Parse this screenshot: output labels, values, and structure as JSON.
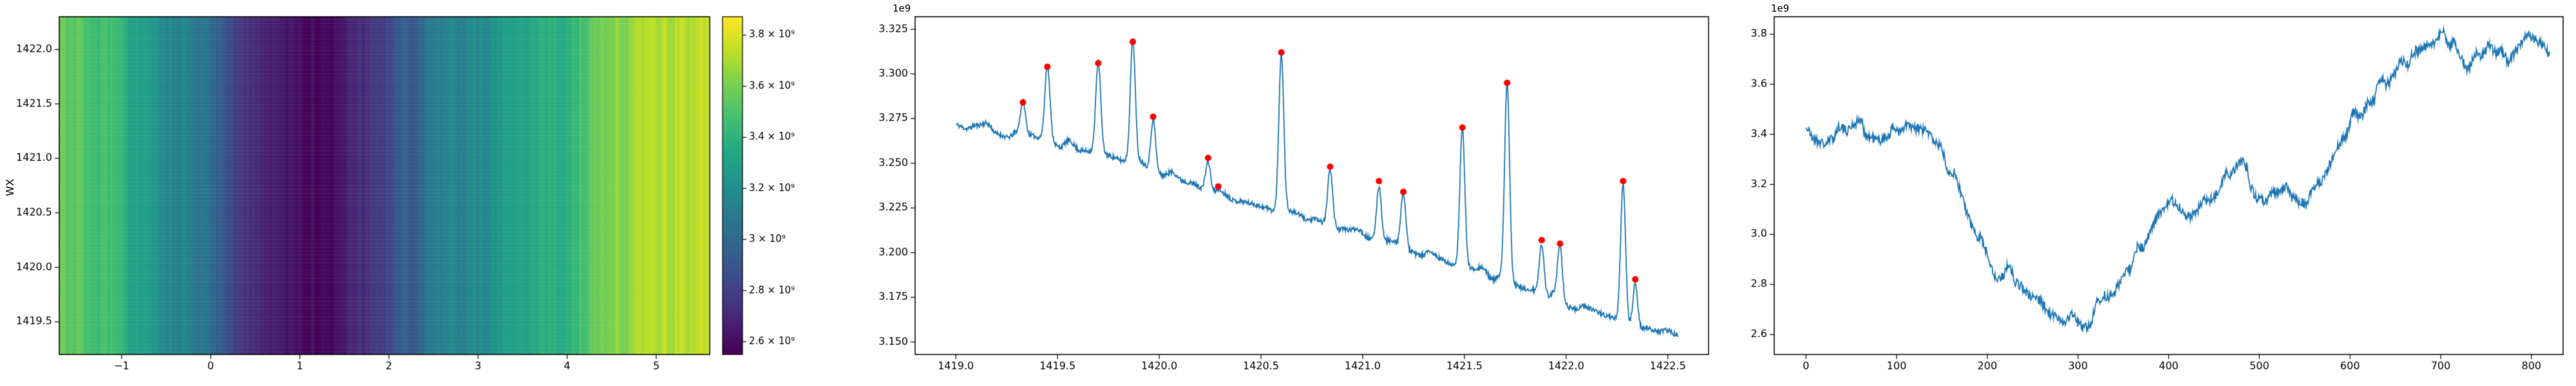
{
  "figure": {
    "background": "#ffffff"
  },
  "style": {
    "line_color": "#1f77b4",
    "marker_color": "#ff0000",
    "axis_color": "#000000",
    "colormap": [
      [
        0.0,
        "#440154"
      ],
      [
        0.1,
        "#482475"
      ],
      [
        0.2,
        "#414487"
      ],
      [
        0.3,
        "#355f8d"
      ],
      [
        0.4,
        "#2a788e"
      ],
      [
        0.5,
        "#21918c"
      ],
      [
        0.6,
        "#22a884"
      ],
      [
        0.7,
        "#44bf70"
      ],
      [
        0.8,
        "#7ad151"
      ],
      [
        0.9,
        "#bddf26"
      ],
      [
        1.0,
        "#fde725"
      ]
    ]
  },
  "chart_data": [
    {
      "id": "intensity-heatmap",
      "type": "heatmap",
      "title": "",
      "xlabel": "",
      "ylabel": "WX",
      "xlim": [
        -1.7,
        5.6
      ],
      "ylim": [
        1419.2,
        1422.3
      ],
      "xticks": [
        {
          "v": -1,
          "label": "−1"
        },
        {
          "v": 0,
          "label": "0"
        },
        {
          "v": 1,
          "label": "1"
        },
        {
          "v": 2,
          "label": "2"
        },
        {
          "v": 3,
          "label": "3"
        },
        {
          "v": 4,
          "label": "4"
        },
        {
          "v": 5,
          "label": "5"
        }
      ],
      "yticks": [
        {
          "v": 1422.0,
          "label": "1422.0"
        },
        {
          "v": 1421.5,
          "label": "1421.5"
        },
        {
          "v": 1421.0,
          "label": "1421.0"
        },
        {
          "v": 1420.5,
          "label": "1420.5"
        },
        {
          "v": 1420.0,
          "label": "1420.0"
        },
        {
          "v": 1419.5,
          "label": "1419.5"
        }
      ],
      "value_range_1e9": [
        2.55,
        3.872
      ],
      "profile_x": [
        -1.7,
        -1.3,
        -1.0,
        -0.6,
        -0.3,
        0.0,
        0.3,
        0.6,
        0.9,
        1.2,
        1.5,
        1.8,
        2.1,
        2.5,
        3.0,
        3.5,
        4.0,
        4.3,
        4.6,
        5.0,
        5.3,
        5.6
      ],
      "profile_v": [
        3.56,
        3.47,
        3.38,
        3.24,
        3.1,
        2.98,
        2.82,
        2.68,
        2.62,
        2.6,
        2.64,
        2.74,
        2.92,
        3.06,
        3.2,
        3.3,
        3.42,
        3.52,
        3.62,
        3.7,
        3.76,
        3.82
      ],
      "colorbar": {
        "ticks": [
          {
            "v": 3.8,
            "label": "3.8 × 10⁹"
          },
          {
            "v": 3.6,
            "label": "3.6 × 10⁹"
          },
          {
            "v": 3.4,
            "label": "3.4 × 10⁹"
          },
          {
            "v": 3.2,
            "label": "3.2 × 10⁹"
          },
          {
            "v": 3.0,
            "label": "3 × 10⁹"
          },
          {
            "v": 2.8,
            "label": "2.8 × 10⁹"
          },
          {
            "v": 2.6,
            "label": "2.6 × 10⁹"
          }
        ]
      }
    },
    {
      "id": "spectrum-with-peaks",
      "type": "line",
      "title": "",
      "xlabel": "",
      "ylabel": "",
      "offset_label": "1e9",
      "xlim": [
        1418.8,
        1422.7
      ],
      "ylim": [
        3.143,
        3.332
      ],
      "xticks": [
        {
          "v": 1419.0,
          "label": "1419.0"
        },
        {
          "v": 1419.5,
          "label": "1419.5"
        },
        {
          "v": 1420.0,
          "label": "1420.0"
        },
        {
          "v": 1420.5,
          "label": "1420.5"
        },
        {
          "v": 1421.0,
          "label": "1421.0"
        },
        {
          "v": 1421.5,
          "label": "1421.5"
        },
        {
          "v": 1422.0,
          "label": "1422.0"
        },
        {
          "v": 1422.5,
          "label": "1422.5"
        }
      ],
      "yticks": [
        {
          "v": 3.15,
          "label": "3.150"
        },
        {
          "v": 3.175,
          "label": "3.175"
        },
        {
          "v": 3.2,
          "label": "3.200"
        },
        {
          "v": 3.225,
          "label": "3.225"
        },
        {
          "v": 3.25,
          "label": "3.250"
        },
        {
          "v": 3.275,
          "label": "3.275"
        },
        {
          "v": 3.3,
          "label": "3.300"
        },
        {
          "v": 3.325,
          "label": "3.325"
        }
      ],
      "x_range": [
        1419.0,
        1422.55
      ],
      "baseline": [
        [
          1419.0,
          3.273
        ],
        [
          1419.5,
          3.262
        ],
        [
          1420.0,
          3.245
        ],
        [
          1420.5,
          3.227
        ],
        [
          1421.0,
          3.211
        ],
        [
          1421.5,
          3.193
        ],
        [
          1422.0,
          3.173
        ],
        [
          1422.3,
          3.161
        ],
        [
          1422.55,
          3.152
        ]
      ],
      "peaks": [
        [
          1419.33,
          3.284
        ],
        [
          1419.45,
          3.304
        ],
        [
          1419.7,
          3.306
        ],
        [
          1419.87,
          3.318
        ],
        [
          1419.97,
          3.276
        ],
        [
          1420.24,
          3.253
        ],
        [
          1420.29,
          3.237
        ],
        [
          1420.6,
          3.312
        ],
        [
          1420.84,
          3.248
        ],
        [
          1421.08,
          3.24
        ],
        [
          1421.2,
          3.234
        ],
        [
          1421.49,
          3.27
        ],
        [
          1421.71,
          3.295
        ],
        [
          1421.88,
          3.207
        ],
        [
          1421.97,
          3.205
        ],
        [
          1422.28,
          3.24
        ],
        [
          1422.34,
          3.185
        ]
      ],
      "spike_sigma": 0.012,
      "noise_amp": 0.0013,
      "wiggle_amp": 0.003
    },
    {
      "id": "time-series",
      "type": "line",
      "title": "",
      "xlabel": "",
      "ylabel": "",
      "offset_label": "1e9",
      "xlim": [
        -35,
        835
      ],
      "ylim": [
        2.52,
        3.87
      ],
      "xticks": [
        {
          "v": 0,
          "label": "0"
        },
        {
          "v": 100,
          "label": "100"
        },
        {
          "v": 200,
          "label": "200"
        },
        {
          "v": 300,
          "label": "300"
        },
        {
          "v": 400,
          "label": "400"
        },
        {
          "v": 500,
          "label": "500"
        },
        {
          "v": 600,
          "label": "600"
        },
        {
          "v": 700,
          "label": "700"
        },
        {
          "v": 800,
          "label": "800"
        }
      ],
      "yticks": [
        {
          "v": 2.6,
          "label": "2.6"
        },
        {
          "v": 2.8,
          "label": "2.8"
        },
        {
          "v": 3.0,
          "label": "3.0"
        },
        {
          "v": 3.2,
          "label": "3.2"
        },
        {
          "v": 3.4,
          "label": "3.4"
        },
        {
          "v": 3.6,
          "label": "3.6"
        },
        {
          "v": 3.8,
          "label": "3.8"
        }
      ],
      "keypoints": [
        [
          0,
          3.42
        ],
        [
          20,
          3.38
        ],
        [
          40,
          3.41
        ],
        [
          60,
          3.44
        ],
        [
          80,
          3.4
        ],
        [
          100,
          3.43
        ],
        [
          120,
          3.44
        ],
        [
          140,
          3.37
        ],
        [
          155,
          3.3
        ],
        [
          170,
          3.18
        ],
        [
          185,
          3.05
        ],
        [
          200,
          2.92
        ],
        [
          210,
          2.84
        ],
        [
          225,
          2.86
        ],
        [
          240,
          2.8
        ],
        [
          255,
          2.76
        ],
        [
          270,
          2.7
        ],
        [
          285,
          2.66
        ],
        [
          295,
          2.72
        ],
        [
          305,
          2.63
        ],
        [
          320,
          2.7
        ],
        [
          335,
          2.78
        ],
        [
          350,
          2.84
        ],
        [
          365,
          2.92
        ],
        [
          380,
          3.02
        ],
        [
          395,
          3.1
        ],
        [
          410,
          3.12
        ],
        [
          425,
          3.09
        ],
        [
          440,
          3.12
        ],
        [
          455,
          3.16
        ],
        [
          470,
          3.27
        ],
        [
          480,
          3.3
        ],
        [
          495,
          3.18
        ],
        [
          510,
          3.14
        ],
        [
          525,
          3.17
        ],
        [
          540,
          3.15
        ],
        [
          555,
          3.16
        ],
        [
          570,
          3.22
        ],
        [
          585,
          3.35
        ],
        [
          600,
          3.45
        ],
        [
          615,
          3.5
        ],
        [
          630,
          3.58
        ],
        [
          645,
          3.62
        ],
        [
          660,
          3.68
        ],
        [
          675,
          3.73
        ],
        [
          690,
          3.77
        ],
        [
          705,
          3.79
        ],
        [
          715,
          3.73
        ],
        [
          730,
          3.67
        ],
        [
          745,
          3.74
        ],
        [
          760,
          3.76
        ],
        [
          775,
          3.7
        ],
        [
          790,
          3.77
        ],
        [
          805,
          3.78
        ],
        [
          820,
          3.74
        ]
      ],
      "noise_amp": 0.02,
      "wiggle_amp": 0.035
    }
  ]
}
